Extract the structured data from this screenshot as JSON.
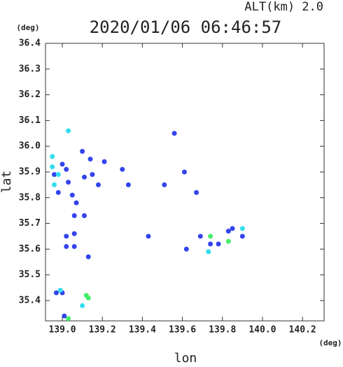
{
  "chart_data": {
    "type": "scatter",
    "title": "2020/01/06 06:46:57",
    "subtitle": "ALT(km) 2.0",
    "x_label": "lon",
    "y_label": "lat",
    "x_unit": "(deg)",
    "y_unit": "(deg)",
    "xlim": [
      138.916,
      140.308
    ],
    "ylim": [
      35.321,
      36.4
    ],
    "xticks": [
      {
        "value": 139.0,
        "label": "139.0"
      },
      139.2,
      139.4,
      139.6,
      139.8,
      {
        "value": 140.0,
        "label": "140.0"
      },
      140.2
    ],
    "yticks": [
      36.4,
      36.3,
      36.2,
      36.1,
      {
        "value": 36.0,
        "label": "36.0"
      },
      35.9,
      35.8,
      35.7,
      35.6,
      35.5,
      35.4
    ],
    "series": [
      {
        "color": "#3344ee",
        "x": [
          138.96,
          138.98,
          139.0,
          139.02,
          139.03,
          139.05,
          139.07,
          139.06,
          139.06,
          139.02,
          139.02,
          139.06,
          139.13,
          139.1,
          139.14,
          139.15,
          139.18,
          139.21,
          139.3,
          139.33,
          139.43,
          139.56,
          139.61,
          139.51,
          139.67,
          139.62,
          139.69,
          139.74,
          139.83,
          139.85,
          139.78,
          139.9,
          138.97,
          139.0,
          139.01,
          139.11,
          139.11
        ],
        "values": [
          35.89,
          35.82,
          35.93,
          35.91,
          35.86,
          35.81,
          35.78,
          35.73,
          35.66,
          35.65,
          35.61,
          35.61,
          35.57,
          35.98,
          35.95,
          35.89,
          35.85,
          35.94,
          35.91,
          35.85,
          35.65,
          36.05,
          35.9,
          35.85,
          35.82,
          35.6,
          35.65,
          35.62,
          35.67,
          35.68,
          35.62,
          35.65,
          35.43,
          35.43,
          35.34,
          35.73,
          35.88
        ]
      },
      {
        "color": "#33ddee",
        "x": [
          138.95,
          138.95,
          139.03,
          138.96,
          138.99,
          139.1,
          139.9,
          139.73,
          138.98
        ],
        "values": [
          35.92,
          35.96,
          36.06,
          35.85,
          35.44,
          35.38,
          35.68,
          35.59,
          35.89
        ]
      },
      {
        "color": "#44ee66",
        "x": [
          139.12,
          139.13,
          139.03,
          139.74,
          139.83
        ],
        "values": [
          35.42,
          35.41,
          35.33,
          35.65,
          35.63
        ]
      }
    ]
  }
}
